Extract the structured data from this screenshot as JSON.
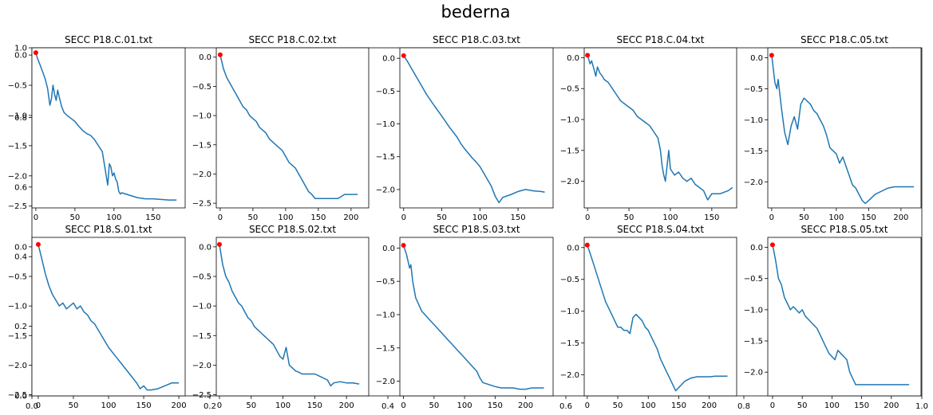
{
  "suptitle": "bederna",
  "colors": {
    "line": "#1f77b4",
    "marker": "#ff0000",
    "axis": "#000000"
  },
  "background_axis": {
    "x_ticks": [
      "0.0",
      "0.2",
      "0.4",
      "0.6",
      "0.8",
      "1.0"
    ],
    "y_ticks": [
      "0.0",
      "0.2",
      "0.4",
      "0.6",
      "0.8",
      "1.0"
    ]
  },
  "chart_data": [
    {
      "type": "line",
      "title": "SECC P18.C.01.txt",
      "xlim": [
        -5,
        191
      ],
      "ylim": [
        -2.53,
        0.12
      ],
      "xticks": [
        0,
        50,
        100,
        150
      ],
      "yticks": [
        0.0,
        -0.5,
        -1.0,
        -1.5,
        -2.0,
        -2.5
      ],
      "marker": [
        0,
        0.04
      ],
      "series": [
        {
          "x": [
            0,
            2,
            5,
            8,
            12,
            15,
            18,
            20,
            22,
            24,
            26,
            28,
            30,
            33,
            36,
            40,
            45,
            50,
            55,
            60,
            65,
            70,
            75,
            80,
            85,
            90,
            92,
            94,
            96,
            98,
            100,
            102,
            104,
            106,
            108,
            110,
            115,
            120,
            130,
            140,
            150,
            160,
            170,
            180
          ],
          "y": [
            0.04,
            -0.05,
            -0.15,
            -0.25,
            -0.4,
            -0.55,
            -0.83,
            -0.72,
            -0.5,
            -0.65,
            -0.75,
            -0.58,
            -0.7,
            -0.85,
            -0.95,
            -1.0,
            -1.05,
            -1.1,
            -1.18,
            -1.25,
            -1.3,
            -1.33,
            -1.4,
            -1.5,
            -1.6,
            -2.0,
            -2.15,
            -1.8,
            -1.85,
            -2.0,
            -1.95,
            -2.05,
            -2.1,
            -2.25,
            -2.3,
            -2.28,
            -2.3,
            -2.32,
            -2.36,
            -2.38,
            -2.38,
            -2.39,
            -2.4,
            -2.4
          ]
        }
      ]
    },
    {
      "type": "line",
      "title": "SECC P18.C.02.txt",
      "xlim": [
        -6,
        227
      ],
      "ylim": [
        -2.58,
        0.16
      ],
      "xticks": [
        0,
        50,
        100,
        150,
        200
      ],
      "yticks": [
        0.0,
        -0.5,
        -1.0,
        -1.5,
        -2.0,
        -2.5
      ],
      "marker": [
        0,
        0.04
      ],
      "series": [
        {
          "x": [
            0,
            5,
            10,
            15,
            20,
            25,
            30,
            35,
            40,
            45,
            50,
            55,
            60,
            65,
            70,
            75,
            80,
            85,
            90,
            95,
            100,
            105,
            110,
            115,
            120,
            125,
            130,
            135,
            140,
            145,
            150,
            160,
            170,
            180,
            190,
            200,
            210
          ],
          "y": [
            0.04,
            -0.2,
            -0.35,
            -0.45,
            -0.55,
            -0.65,
            -0.75,
            -0.85,
            -0.9,
            -1.0,
            -1.05,
            -1.1,
            -1.2,
            -1.25,
            -1.3,
            -1.4,
            -1.45,
            -1.5,
            -1.55,
            -1.6,
            -1.7,
            -1.8,
            -1.85,
            -1.9,
            -2.0,
            -2.1,
            -2.2,
            -2.3,
            -2.35,
            -2.42,
            -2.42,
            -2.42,
            -2.42,
            -2.42,
            -2.35,
            -2.35,
            -2.35
          ]
        }
      ]
    },
    {
      "type": "line",
      "title": "SECC P18.C.03.txt",
      "xlim": [
        -5,
        196
      ],
      "ylim": [
        -2.28,
        0.16
      ],
      "xticks": [
        0,
        50,
        100,
        150
      ],
      "yticks": [
        0.0,
        -0.5,
        -1.0,
        -1.5,
        -2.0
      ],
      "marker": [
        0,
        0.04
      ],
      "series": [
        {
          "x": [
            0,
            5,
            10,
            15,
            20,
            30,
            40,
            50,
            60,
            70,
            75,
            80,
            85,
            90,
            95,
            100,
            105,
            110,
            115,
            120,
            125,
            130,
            140,
            150,
            160,
            170,
            180,
            185
          ],
          "y": [
            0.04,
            -0.05,
            -0.15,
            -0.25,
            -0.35,
            -0.55,
            -0.72,
            -0.88,
            -1.05,
            -1.2,
            -1.3,
            -1.38,
            -1.45,
            -1.52,
            -1.58,
            -1.65,
            -1.75,
            -1.85,
            -1.95,
            -2.1,
            -2.2,
            -2.12,
            -2.08,
            -2.03,
            -2.0,
            -2.02,
            -2.03,
            -2.04
          ]
        }
      ]
    },
    {
      "type": "line",
      "title": "SECC P18.C.04.txt",
      "xlim": [
        -4,
        180
      ],
      "ylim": [
        -2.43,
        0.16
      ],
      "xticks": [
        0,
        50,
        100,
        150
      ],
      "yticks": [
        0.0,
        -0.5,
        -1.0,
        -1.5,
        -2.0
      ],
      "marker": [
        0,
        0.04
      ],
      "series": [
        {
          "x": [
            0,
            3,
            5,
            8,
            10,
            12,
            15,
            18,
            20,
            25,
            30,
            35,
            40,
            45,
            50,
            55,
            60,
            65,
            70,
            75,
            80,
            85,
            88,
            90,
            92,
            94,
            96,
            98,
            100,
            105,
            110,
            115,
            120,
            125,
            130,
            135,
            140,
            145,
            150,
            160,
            170,
            175
          ],
          "y": [
            0.04,
            -0.1,
            -0.05,
            -0.2,
            -0.3,
            -0.15,
            -0.25,
            -0.3,
            -0.35,
            -0.4,
            -0.5,
            -0.6,
            -0.7,
            -0.75,
            -0.8,
            -0.85,
            -0.95,
            -1.0,
            -1.05,
            -1.1,
            -1.2,
            -1.3,
            -1.5,
            -1.75,
            -1.9,
            -2.0,
            -1.75,
            -1.5,
            -1.8,
            -1.9,
            -1.85,
            -1.95,
            -2.0,
            -1.95,
            -2.05,
            -2.1,
            -2.15,
            -2.3,
            -2.2,
            -2.2,
            -2.15,
            -2.1
          ]
        }
      ]
    },
    {
      "type": "line",
      "title": "SECC P18.C.05.txt",
      "xlim": [
        -6,
        231
      ],
      "ylim": [
        -2.42,
        0.16
      ],
      "xticks": [
        0,
        50,
        100,
        150,
        200
      ],
      "yticks": [
        0.0,
        -0.5,
        -1.0,
        -1.5,
        -2.0
      ],
      "marker": [
        0,
        0.04
      ],
      "series": [
        {
          "x": [
            0,
            5,
            8,
            10,
            15,
            20,
            25,
            30,
            35,
            40,
            45,
            50,
            55,
            60,
            65,
            70,
            75,
            80,
            85,
            90,
            95,
            100,
            105,
            110,
            115,
            120,
            125,
            130,
            135,
            140,
            145,
            150,
            160,
            170,
            180,
            190,
            200,
            210,
            220
          ],
          "y": [
            0.04,
            -0.4,
            -0.5,
            -0.35,
            -0.8,
            -1.2,
            -1.4,
            -1.1,
            -0.95,
            -1.15,
            -0.75,
            -0.65,
            -0.7,
            -0.75,
            -0.85,
            -0.9,
            -1.0,
            -1.1,
            -1.25,
            -1.45,
            -1.5,
            -1.55,
            -1.7,
            -1.6,
            -1.75,
            -1.9,
            -2.05,
            -2.1,
            -2.2,
            -2.3,
            -2.35,
            -2.3,
            -2.2,
            -2.15,
            -2.1,
            -2.08,
            -2.08,
            -2.08,
            -2.08
          ]
        }
      ]
    },
    {
      "type": "line",
      "title": "SECC P18.S.01.txt",
      "xlim": [
        -9,
        209
      ],
      "ylim": [
        -2.52,
        0.16
      ],
      "xticks": [
        0,
        50,
        100,
        150,
        200
      ],
      "yticks": [
        0.0,
        -0.5,
        -1.0,
        -1.5,
        -2.0,
        -2.5
      ],
      "marker": [
        0,
        0.04
      ],
      "series": [
        {
          "x": [
            0,
            5,
            10,
            15,
            20,
            25,
            30,
            35,
            40,
            45,
            50,
            55,
            60,
            65,
            70,
            75,
            80,
            85,
            90,
            95,
            100,
            110,
            120,
            130,
            140,
            145,
            150,
            155,
            160,
            170,
            180,
            190,
            200
          ],
          "y": [
            0.04,
            -0.2,
            -0.45,
            -0.65,
            -0.8,
            -0.9,
            -1.0,
            -0.95,
            -1.05,
            -1.0,
            -0.95,
            -1.05,
            -1.0,
            -1.1,
            -1.15,
            -1.25,
            -1.3,
            -1.4,
            -1.5,
            -1.6,
            -1.7,
            -1.85,
            -2.0,
            -2.15,
            -2.3,
            -2.4,
            -2.35,
            -2.42,
            -2.42,
            -2.4,
            -2.35,
            -2.3,
            -2.3
          ]
        }
      ]
    },
    {
      "type": "line",
      "title": "SECC P18.S.02.txt",
      "xlim": [
        -5,
        235
      ],
      "ylim": [
        -2.52,
        0.16
      ],
      "xticks": [
        0,
        50,
        100,
        150,
        200
      ],
      "yticks": [
        0.0,
        -0.5,
        -1.0,
        -1.5,
        -2.0,
        -2.5
      ],
      "marker": [
        0,
        0.04
      ],
      "series": [
        {
          "x": [
            0,
            5,
            10,
            15,
            20,
            25,
            30,
            35,
            40,
            45,
            50,
            55,
            60,
            65,
            70,
            75,
            80,
            85,
            90,
            95,
            100,
            105,
            110,
            115,
            120,
            125,
            130,
            140,
            150,
            160,
            170,
            175,
            180,
            190,
            200,
            210,
            220
          ],
          "y": [
            0.04,
            -0.3,
            -0.5,
            -0.6,
            -0.75,
            -0.85,
            -0.95,
            -1.0,
            -1.1,
            -1.2,
            -1.25,
            -1.35,
            -1.4,
            -1.45,
            -1.5,
            -1.55,
            -1.6,
            -1.65,
            -1.75,
            -1.85,
            -1.9,
            -1.7,
            -2.0,
            -2.05,
            -2.1,
            -2.12,
            -2.15,
            -2.15,
            -2.15,
            -2.2,
            -2.25,
            -2.35,
            -2.3,
            -2.28,
            -2.3,
            -2.3,
            -2.32
          ]
        }
      ]
    },
    {
      "type": "line",
      "title": "SECC P18.S.03.txt",
      "xlim": [
        -6,
        245
      ],
      "ylim": [
        -2.22,
        0.16
      ],
      "xticks": [
        0,
        50,
        100,
        150,
        200
      ],
      "yticks": [
        0.0,
        -0.5,
        -1.0,
        -1.5,
        -2.0
      ],
      "marker": [
        0,
        0.04
      ],
      "series": [
        {
          "x": [
            0,
            5,
            10,
            12,
            15,
            20,
            25,
            30,
            35,
            40,
            50,
            60,
            70,
            80,
            90,
            100,
            110,
            120,
            125,
            130,
            140,
            150,
            160,
            170,
            180,
            190,
            200,
            210,
            220,
            230
          ],
          "y": [
            0.04,
            -0.1,
            -0.3,
            -0.25,
            -0.5,
            -0.75,
            -0.85,
            -0.95,
            -1.0,
            -1.05,
            -1.15,
            -1.25,
            -1.35,
            -1.45,
            -1.55,
            -1.65,
            -1.75,
            -1.85,
            -1.95,
            -2.02,
            -2.05,
            -2.08,
            -2.1,
            -2.1,
            -2.1,
            -2.12,
            -2.12,
            -2.1,
            -2.1,
            -2.1
          ]
        }
      ]
    },
    {
      "type": "line",
      "title": "SECC P18.S.04.txt",
      "xlim": [
        -5,
        245
      ],
      "ylim": [
        -2.33,
        0.16
      ],
      "xticks": [
        0,
        50,
        100,
        150,
        200
      ],
      "yticks": [
        0.0,
        -0.5,
        -1.0,
        -1.5,
        -2.0
      ],
      "marker": [
        0,
        0.04
      ],
      "series": [
        {
          "x": [
            0,
            5,
            10,
            15,
            20,
            25,
            30,
            35,
            40,
            45,
            50,
            55,
            60,
            65,
            70,
            75,
            80,
            85,
            90,
            95,
            100,
            105,
            110,
            115,
            120,
            125,
            130,
            135,
            140,
            145,
            150,
            155,
            160,
            170,
            180,
            190,
            200,
            210,
            220,
            230
          ],
          "y": [
            0.04,
            -0.1,
            -0.25,
            -0.4,
            -0.55,
            -0.7,
            -0.85,
            -0.95,
            -1.05,
            -1.15,
            -1.25,
            -1.25,
            -1.3,
            -1.3,
            -1.35,
            -1.1,
            -1.05,
            -1.1,
            -1.15,
            -1.25,
            -1.3,
            -1.4,
            -1.5,
            -1.6,
            -1.75,
            -1.85,
            -1.95,
            -2.05,
            -2.15,
            -2.25,
            -2.2,
            -2.15,
            -2.1,
            -2.05,
            -2.03,
            -2.03,
            -2.03,
            -2.02,
            -2.02,
            -2.02
          ]
        }
      ]
    },
    {
      "type": "line",
      "title": "SECC P18.S.05.txt",
      "xlim": [
        -8,
        250
      ],
      "ylim": [
        -2.38,
        0.16
      ],
      "xticks": [
        0,
        50,
        100,
        150,
        200
      ],
      "yticks": [
        0.0,
        -0.5,
        -1.0,
        -1.5,
        -2.0
      ],
      "marker": [
        0,
        0.04
      ],
      "series": [
        {
          "x": [
            0,
            5,
            10,
            15,
            20,
            25,
            30,
            35,
            40,
            45,
            50,
            55,
            60,
            65,
            70,
            75,
            80,
            85,
            90,
            95,
            100,
            105,
            110,
            115,
            120,
            125,
            130,
            135,
            140,
            150,
            160,
            170,
            180,
            190,
            200,
            210,
            220,
            230
          ],
          "y": [
            0.04,
            -0.2,
            -0.5,
            -0.6,
            -0.8,
            -0.9,
            -1.0,
            -0.95,
            -1.0,
            -1.05,
            -1.0,
            -1.1,
            -1.15,
            -1.2,
            -1.25,
            -1.3,
            -1.4,
            -1.5,
            -1.6,
            -1.7,
            -1.75,
            -1.8,
            -1.65,
            -1.7,
            -1.75,
            -1.8,
            -2.0,
            -2.1,
            -2.2,
            -2.2,
            -2.2,
            -2.2,
            -2.2,
            -2.2,
            -2.2,
            -2.2,
            -2.2,
            -2.2
          ]
        }
      ]
    }
  ]
}
